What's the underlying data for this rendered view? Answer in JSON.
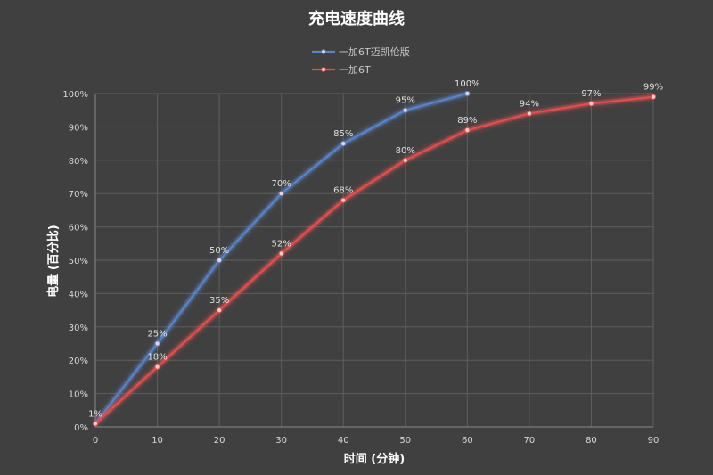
{
  "chart_data": {
    "type": "line",
    "title": "充电速度曲线",
    "xlabel": "时间 (分钟)",
    "ylabel": "电量 (百分比)",
    "x_ticks": [
      "0",
      "10",
      "20",
      "30",
      "40",
      "50",
      "60",
      "70",
      "80",
      "90"
    ],
    "y_ticks": [
      "0%",
      "10%",
      "20%",
      "30%",
      "40%",
      "50%",
      "60%",
      "70%",
      "80%",
      "90%",
      "100%"
    ],
    "xlim": [
      0,
      90
    ],
    "ylim": [
      0,
      100
    ],
    "grid": true,
    "legend_position": "top-center",
    "series": [
      {
        "name": "一加6T迈凯伦版",
        "color": "#5b83c7",
        "x": [
          0,
          10,
          20,
          30,
          40,
          50,
          60
        ],
        "y": [
          1,
          25,
          50,
          70,
          85,
          95,
          100
        ],
        "labels": [
          "1%",
          "25%",
          "50%",
          "70%",
          "85%",
          "95%",
          "100%"
        ]
      },
      {
        "name": "一加6T",
        "color": "#e05050",
        "x": [
          0,
          10,
          20,
          30,
          40,
          50,
          60,
          70,
          80,
          90
        ],
        "y": [
          1,
          18,
          35,
          52,
          68,
          80,
          89,
          94,
          97,
          99
        ],
        "labels": [
          "",
          "18%",
          "35%",
          "52%",
          "68%",
          "80%",
          "89%",
          "94%",
          "97%",
          "99%"
        ]
      }
    ]
  }
}
